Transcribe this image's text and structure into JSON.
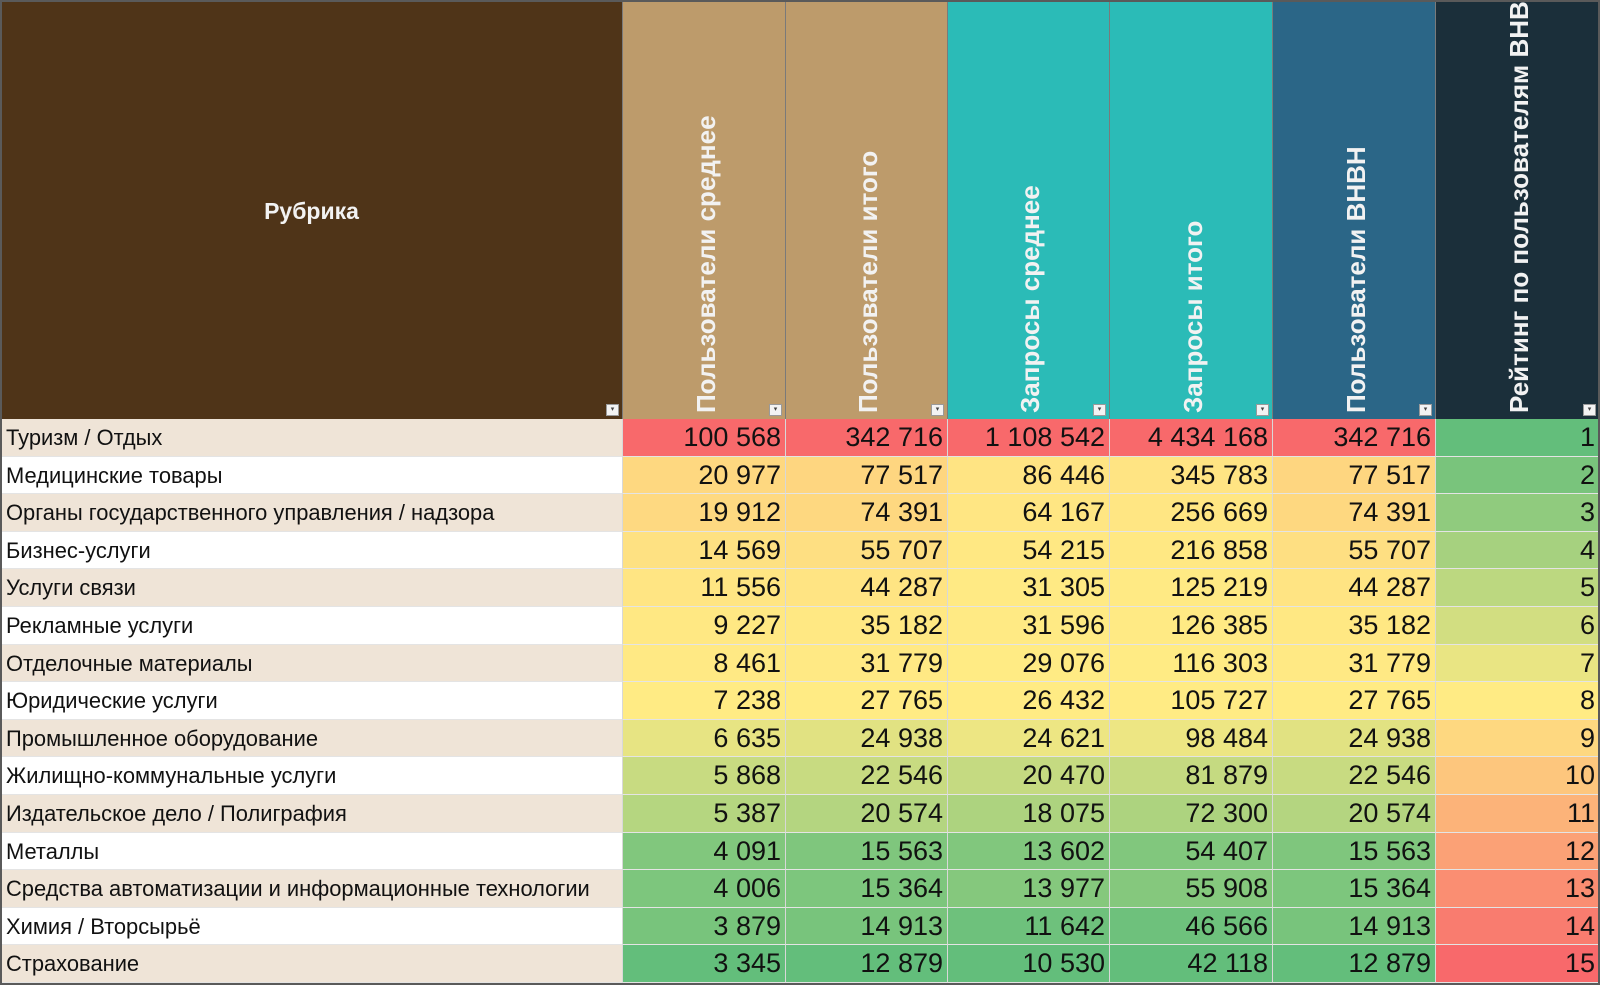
{
  "table": {
    "headers": [
      {
        "key": "rubric",
        "label": "Рубрика",
        "color": "#4f3418",
        "vertical": false
      },
      {
        "key": "users_avg",
        "label": "Пользователи среднее",
        "color": "#bd9b6b",
        "vertical": true
      },
      {
        "key": "users_total",
        "label": "Пользователи итого",
        "color": "#bd9b6b",
        "vertical": true
      },
      {
        "key": "queries_avg",
        "label": "Запросы среднее",
        "color": "#2bbbb7",
        "vertical": true
      },
      {
        "key": "queries_total",
        "label": "Запросы итого",
        "color": "#2bbbb7",
        "vertical": true
      },
      {
        "key": "users_bhbh",
        "label": "Пользователи BHBH",
        "color": "#2b6687",
        "vertical": true
      },
      {
        "key": "rating",
        "label": "Рейтинг по пользователям BHBH",
        "color": "#1b2f3a",
        "vertical": true
      }
    ],
    "rows": [
      {
        "name": "Туризм / Отдых",
        "users_avg": "100 568",
        "users_total": "342 716",
        "queries_avg": "1 108 542",
        "queries_total": "4 434 168",
        "users_bhbh": "342 716",
        "rating": "1"
      },
      {
        "name": "Медицинские товары",
        "users_avg": "20 977",
        "users_total": "77 517",
        "queries_avg": "86 446",
        "queries_total": "345 783",
        "users_bhbh": "77 517",
        "rating": "2"
      },
      {
        "name": "Органы государственного управления / надзора",
        "users_avg": "19 912",
        "users_total": "74 391",
        "queries_avg": "64 167",
        "queries_total": "256 669",
        "users_bhbh": "74 391",
        "rating": "3"
      },
      {
        "name": "Бизнес-услуги",
        "users_avg": "14 569",
        "users_total": "55 707",
        "queries_avg": "54 215",
        "queries_total": "216 858",
        "users_bhbh": "55 707",
        "rating": "4"
      },
      {
        "name": "Услуги связи",
        "users_avg": "11 556",
        "users_total": "44 287",
        "queries_avg": "31 305",
        "queries_total": "125 219",
        "users_bhbh": "44 287",
        "rating": "5"
      },
      {
        "name": "Рекламные услуги",
        "users_avg": "9 227",
        "users_total": "35 182",
        "queries_avg": "31 596",
        "queries_total": "126 385",
        "users_bhbh": "35 182",
        "rating": "6"
      },
      {
        "name": "Отделочные материалы",
        "users_avg": "8 461",
        "users_total": "31 779",
        "queries_avg": "29 076",
        "queries_total": "116 303",
        "users_bhbh": "31 779",
        "rating": "7"
      },
      {
        "name": "Юридические услуги",
        "users_avg": "7 238",
        "users_total": "27 765",
        "queries_avg": "26 432",
        "queries_total": "105 727",
        "users_bhbh": "27 765",
        "rating": "8"
      },
      {
        "name": "Промышленное оборудование",
        "users_avg": "6 635",
        "users_total": "24 938",
        "queries_avg": "24 621",
        "queries_total": "98 484",
        "users_bhbh": "24 938",
        "rating": "9"
      },
      {
        "name": "Жилищно-коммунальные услуги",
        "users_avg": "5 868",
        "users_total": "22 546",
        "queries_avg": "20 470",
        "queries_total": "81 879",
        "users_bhbh": "22 546",
        "rating": "10"
      },
      {
        "name": "Издательское дело / Полиграфия",
        "users_avg": "5 387",
        "users_total": "20 574",
        "queries_avg": "18 075",
        "queries_total": "72 300",
        "users_bhbh": "20 574",
        "rating": "11"
      },
      {
        "name": "Металлы",
        "users_avg": "4 091",
        "users_total": "15 563",
        "queries_avg": "13 602",
        "queries_total": "54 407",
        "users_bhbh": "15 563",
        "rating": "12"
      },
      {
        "name": "Средства автоматизации и информационные технологии",
        "users_avg": "4 006",
        "users_total": "15 364",
        "queries_avg": "13 977",
        "queries_total": "55 908",
        "users_bhbh": "15 364",
        "rating": "13"
      },
      {
        "name": "Химия / Вторсырьё",
        "users_avg": "3 879",
        "users_total": "14 913",
        "queries_avg": "11 642",
        "queries_total": "46 566",
        "users_bhbh": "14 913",
        "rating": "14"
      },
      {
        "name": "Страхование",
        "users_avg": "3 345",
        "users_total": "12 879",
        "queries_avg": "10 530",
        "queries_total": "42 118",
        "users_bhbh": "12 879",
        "rating": "15"
      }
    ],
    "row_stripe_colors": [
      "#efe4d7",
      "#ffffff"
    ],
    "heatmap": {
      "low_color": "#63be7b",
      "mid_color": "#ffeb84",
      "high_color": "#f8696b",
      "rating_low_color": "#63be7b",
      "rating_high_color": "#f8696b"
    }
  }
}
